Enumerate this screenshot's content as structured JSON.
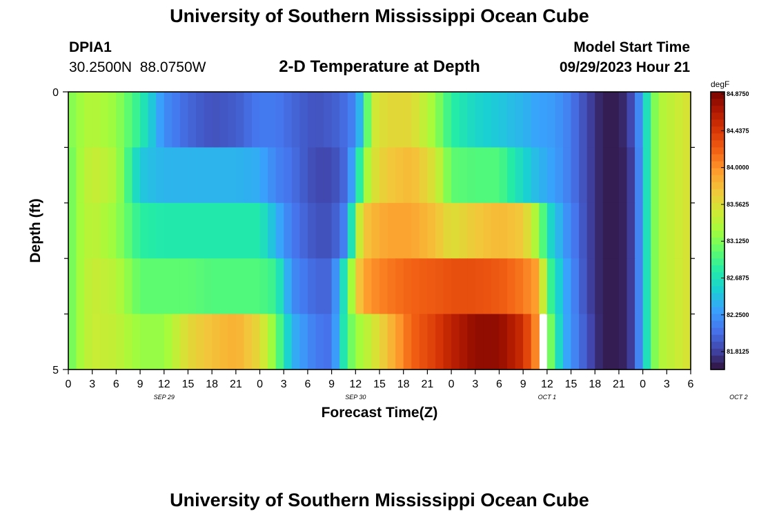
{
  "page": {
    "title": "University of Southern Mississippi Ocean Cube",
    "station_id": "DPIA1",
    "station_coords": "30.2500N  88.0750W",
    "plot_subtitle": "2-D Temperature at Depth",
    "model_start_label": "Model Start Time",
    "model_start_value": "09/29/2023 Hour 21",
    "footer_title": "University of Southern Mississippi Ocean Cube"
  },
  "chart_data": {
    "type": "heatmap",
    "title": "2-D Temperature at Depth",
    "xlabel": "Forecast Time(Z)",
    "ylabel": "Depth (ft)",
    "colorbar_label": "degF",
    "x_tick_labels": [
      "0",
      "3",
      "6",
      "9",
      "12",
      "15",
      "18",
      "21",
      "0",
      "3",
      "6",
      "9",
      "12",
      "15",
      "18",
      "21",
      "0",
      "3",
      "6",
      "9",
      "12",
      "15",
      "18",
      "21",
      "0",
      "3",
      "6"
    ],
    "x_date_labels": [
      "SEP 29",
      "SEP 30",
      "OCT 1",
      "OCT 2"
    ],
    "y_tick_labels": [
      "0",
      "5"
    ],
    "ylim": [
      0,
      5
    ],
    "depth_rows": 5,
    "hours_per_column": 1,
    "color_range": [
      81.6,
      84.9
    ],
    "colorbar_ticks": [
      "84.8750",
      "84.4375",
      "84.0000",
      "83.5625",
      "83.1250",
      "82.6875",
      "82.2500",
      "81.8125"
    ],
    "colors": [
      "#30123b",
      "#4145ab",
      "#4675ed",
      "#39a2fc",
      "#1bcfd4",
      "#24eca6",
      "#61fc6c",
      "#a4fc3b",
      "#d1e834",
      "#f3c63a",
      "#fe9b2d",
      "#f36315",
      "#d93806",
      "#b11901",
      "#7a0402"
    ],
    "missing_color": "#ffffff",
    "anchors": [
      [
        0,
        [
          83.1,
          83.0,
          83.0,
          83.0,
          83.0
        ]
      ],
      [
        1,
        [
          83.2,
          83.2,
          83.2,
          83.2,
          83.2
        ]
      ],
      [
        3,
        [
          83.35,
          83.45,
          83.4,
          83.45,
          83.45
        ]
      ],
      [
        6,
        [
          83.2,
          83.3,
          83.2,
          83.35,
          83.4
        ]
      ],
      [
        9,
        [
          82.8,
          82.5,
          82.8,
          83.0,
          83.2
        ]
      ],
      [
        12,
        [
          82.2,
          82.4,
          82.75,
          83.0,
          83.2
        ]
      ],
      [
        15,
        [
          82.0,
          82.4,
          82.75,
          83.0,
          83.6
        ]
      ],
      [
        18,
        [
          81.9,
          82.4,
          82.75,
          82.95,
          83.75
        ]
      ],
      [
        21,
        [
          81.95,
          82.4,
          82.75,
          82.95,
          83.85
        ]
      ],
      [
        24,
        [
          82.1,
          82.35,
          82.75,
          82.95,
          83.6
        ]
      ],
      [
        26,
        [
          82.1,
          82.15,
          82.4,
          82.85,
          83.1
        ]
      ],
      [
        28,
        [
          82.0,
          82.05,
          82.1,
          82.2,
          82.4
        ]
      ],
      [
        31,
        [
          81.9,
          81.85,
          81.9,
          82.0,
          82.1
        ]
      ],
      [
        33,
        [
          81.95,
          81.85,
          81.9,
          82.0,
          82.05
        ]
      ],
      [
        35,
        [
          82.05,
          82.05,
          82.2,
          82.9,
          82.95
        ]
      ],
      [
        36,
        [
          82.2,
          82.5,
          83.2,
          83.6,
          83.2
        ]
      ],
      [
        37,
        [
          82.6,
          83.1,
          83.7,
          83.9,
          83.3
        ]
      ],
      [
        38,
        [
          83.45,
          83.5,
          83.8,
          84.0,
          83.45
        ]
      ],
      [
        40,
        [
          83.6,
          83.7,
          83.9,
          84.1,
          83.75
        ]
      ],
      [
        43,
        [
          83.6,
          83.8,
          83.9,
          84.2,
          84.2
        ]
      ],
      [
        46,
        [
          83.2,
          83.5,
          83.75,
          84.25,
          84.4
        ]
      ],
      [
        48,
        [
          82.8,
          83.0,
          83.55,
          84.3,
          84.6
        ]
      ],
      [
        51,
        [
          82.6,
          82.95,
          83.7,
          84.3,
          84.8
        ]
      ],
      [
        54,
        [
          82.5,
          82.95,
          83.8,
          84.25,
          84.8
        ]
      ],
      [
        57,
        [
          82.4,
          82.6,
          83.7,
          84.1,
          84.5
        ]
      ],
      [
        59,
        [
          82.3,
          82.4,
          83.2,
          83.9,
          83.9
        ]
      ],
      [
        60,
        [
          82.3,
          82.35,
          82.7,
          83.0,
          83.3
        ]
      ],
      [
        62,
        [
          82.2,
          82.2,
          82.3,
          82.4,
          82.4
        ]
      ],
      [
        65,
        [
          81.85,
          81.85,
          81.85,
          81.85,
          81.9
        ]
      ],
      [
        67,
        [
          81.65,
          81.65,
          81.65,
          81.65,
          81.65
        ]
      ],
      [
        69,
        [
          81.65,
          81.65,
          81.65,
          81.65,
          81.65
        ]
      ],
      [
        70,
        [
          81.75,
          81.7,
          81.7,
          81.7,
          81.7
        ]
      ],
      [
        71,
        [
          81.95,
          81.9,
          81.9,
          81.9,
          81.9
        ]
      ],
      [
        72,
        [
          82.4,
          82.4,
          82.4,
          82.4,
          82.4
        ]
      ],
      [
        73,
        [
          82.95,
          82.95,
          82.95,
          82.95,
          82.95
        ]
      ],
      [
        74,
        [
          83.3,
          83.3,
          83.3,
          83.3,
          83.3
        ]
      ],
      [
        78,
        [
          83.55,
          83.55,
          83.55,
          83.55,
          83.55
        ]
      ]
    ],
    "missing_cells": [
      [
        59,
        4
      ]
    ]
  }
}
